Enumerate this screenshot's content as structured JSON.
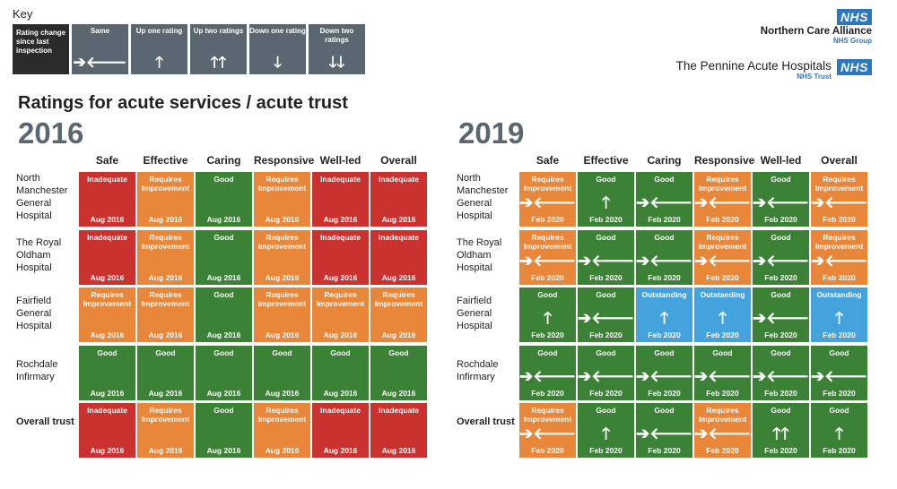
{
  "key": {
    "title": "Key",
    "items": [
      {
        "label": "Rating change since last inspection",
        "arrow": ""
      },
      {
        "label": "Same",
        "arrow": "➔🡐"
      },
      {
        "label": "Up one rating",
        "arrow": "🡑"
      },
      {
        "label": "Up two ratings",
        "arrow": "🡑🡑"
      },
      {
        "label": "Down one rating",
        "arrow": "🡓"
      },
      {
        "label": "Down two ratings",
        "arrow": "🡓🡓"
      }
    ]
  },
  "orgs": {
    "nca": {
      "badge": "NHS",
      "name": "Northern Care Alliance",
      "sub": "NHS Group"
    },
    "pah": {
      "badge": "NHS",
      "name": "The Pennine Acute Hospitals",
      "sub": "NHS Trust"
    }
  },
  "title": "Ratings for acute services / acute trust",
  "columns": [
    "Safe",
    "Effective",
    "Caring",
    "Responsive",
    "Well-led",
    "Overall"
  ],
  "rows": [
    "North Manchester General Hospital",
    "The Royal Oldham Hospital",
    "Fairfield General Hospital",
    "Rochdale Infirmary",
    "Overall trust"
  ],
  "colors": {
    "Inadequate": "#c9322e",
    "Requires Improvement": "#e8873a",
    "Good": "#3b8236",
    "Outstanding": "#44a3dd"
  },
  "panels": [
    {
      "year": "2016",
      "cells": [
        [
          {
            "rating": "Inadequate",
            "date": "Aug 2016",
            "arrow": ""
          },
          {
            "rating": "Requires Improvement",
            "date": "Aug 2016",
            "arrow": ""
          },
          {
            "rating": "Good",
            "date": "Aug 2016",
            "arrow": ""
          },
          {
            "rating": "Requires Improvement",
            "date": "Aug 2016",
            "arrow": ""
          },
          {
            "rating": "Inadequate",
            "date": "Aug 2016",
            "arrow": ""
          },
          {
            "rating": "Inadequate",
            "date": "Aug 2016",
            "arrow": ""
          }
        ],
        [
          {
            "rating": "Inadequate",
            "date": "Aug 2016",
            "arrow": ""
          },
          {
            "rating": "Requires Improvement",
            "date": "Aug 2016",
            "arrow": ""
          },
          {
            "rating": "Good",
            "date": "Aug 2016",
            "arrow": ""
          },
          {
            "rating": "Requires Improvement",
            "date": "Aug 2016",
            "arrow": ""
          },
          {
            "rating": "Inadequate",
            "date": "Aug 2016",
            "arrow": ""
          },
          {
            "rating": "Inadequate",
            "date": "Aug 2016",
            "arrow": ""
          }
        ],
        [
          {
            "rating": "Requires Improvement",
            "date": "Aug 2016",
            "arrow": ""
          },
          {
            "rating": "Requires Improvement",
            "date": "Aug 2016",
            "arrow": ""
          },
          {
            "rating": "Good",
            "date": "Aug 2016",
            "arrow": ""
          },
          {
            "rating": "Requires Improvement",
            "date": "Aug 2016",
            "arrow": ""
          },
          {
            "rating": "Requires Improvement",
            "date": "Aug 2016",
            "arrow": ""
          },
          {
            "rating": "Requires Improvement",
            "date": "Aug 2016",
            "arrow": ""
          }
        ],
        [
          {
            "rating": "Good",
            "date": "Aug 2016",
            "arrow": ""
          },
          {
            "rating": "Good",
            "date": "Aug 2016",
            "arrow": ""
          },
          {
            "rating": "Good",
            "date": "Aug 2016",
            "arrow": ""
          },
          {
            "rating": "Good",
            "date": "Aug 2016",
            "arrow": ""
          },
          {
            "rating": "Good",
            "date": "Aug 2016",
            "arrow": ""
          },
          {
            "rating": "Good",
            "date": "Aug 2016",
            "arrow": ""
          }
        ],
        [
          {
            "rating": "Inadequate",
            "date": "Aug 2016",
            "arrow": ""
          },
          {
            "rating": "Requires Improvement",
            "date": "Aug 2016",
            "arrow": ""
          },
          {
            "rating": "Good",
            "date": "Aug 2016",
            "arrow": ""
          },
          {
            "rating": "Requires Improvement",
            "date": "Aug 2016",
            "arrow": ""
          },
          {
            "rating": "Inadequate",
            "date": "Aug 2016",
            "arrow": ""
          },
          {
            "rating": "Inadequate",
            "date": "Aug 2016",
            "arrow": ""
          }
        ]
      ]
    },
    {
      "year": "2019",
      "cells": [
        [
          {
            "rating": "Requires Improvement",
            "date": "Feb 2020",
            "arrow": "same"
          },
          {
            "rating": "Good",
            "date": "Feb 2020",
            "arrow": "up"
          },
          {
            "rating": "Good",
            "date": "Feb 2020",
            "arrow": "same"
          },
          {
            "rating": "Requires Improvement",
            "date": "Feb 2020",
            "arrow": "same"
          },
          {
            "rating": "Good",
            "date": "Feb 2020",
            "arrow": "same"
          },
          {
            "rating": "Requires Improvement",
            "date": "Feb 2020",
            "arrow": "same"
          }
        ],
        [
          {
            "rating": "Requires Improvement",
            "date": "Feb 2020",
            "arrow": "same"
          },
          {
            "rating": "Good",
            "date": "Feb 2020",
            "arrow": "same"
          },
          {
            "rating": "Good",
            "date": "Feb 2020",
            "arrow": "same"
          },
          {
            "rating": "Requires Improvement",
            "date": "Feb 2020",
            "arrow": "same"
          },
          {
            "rating": "Good",
            "date": "Feb 2020",
            "arrow": "same"
          },
          {
            "rating": "Requires Improvement",
            "date": "Feb 2020",
            "arrow": "same"
          }
        ],
        [
          {
            "rating": "Good",
            "date": "Feb 2020",
            "arrow": "up"
          },
          {
            "rating": "Good",
            "date": "Feb 2020",
            "arrow": "same"
          },
          {
            "rating": "Outstanding",
            "date": "Feb 2020",
            "arrow": "up"
          },
          {
            "rating": "Outstanding",
            "date": "Feb 2020",
            "arrow": "up"
          },
          {
            "rating": "Good",
            "date": "Feb 2020",
            "arrow": "same"
          },
          {
            "rating": "Outstanding",
            "date": "Feb 2020",
            "arrow": "up"
          }
        ],
        [
          {
            "rating": "Good",
            "date": "Feb 2020",
            "arrow": "same"
          },
          {
            "rating": "Good",
            "date": "Feb 2020",
            "arrow": "same"
          },
          {
            "rating": "Good",
            "date": "Feb 2020",
            "arrow": "same"
          },
          {
            "rating": "Good",
            "date": "Feb 2020",
            "arrow": "same"
          },
          {
            "rating": "Good",
            "date": "Feb 2020",
            "arrow": "same"
          },
          {
            "rating": "Good",
            "date": "Feb 2020",
            "arrow": "same"
          }
        ],
        [
          {
            "rating": "Requires Improvement",
            "date": "Feb 2020",
            "arrow": "same"
          },
          {
            "rating": "Good",
            "date": "Feb 2020",
            "arrow": "up"
          },
          {
            "rating": "Good",
            "date": "Feb 2020",
            "arrow": "same"
          },
          {
            "rating": "Requires Improvement",
            "date": "Feb 2020",
            "arrow": "same"
          },
          {
            "rating": "Good",
            "date": "Feb 2020",
            "arrow": "up2"
          },
          {
            "rating": "Good",
            "date": "Feb 2020",
            "arrow": "up"
          }
        ]
      ]
    }
  ]
}
